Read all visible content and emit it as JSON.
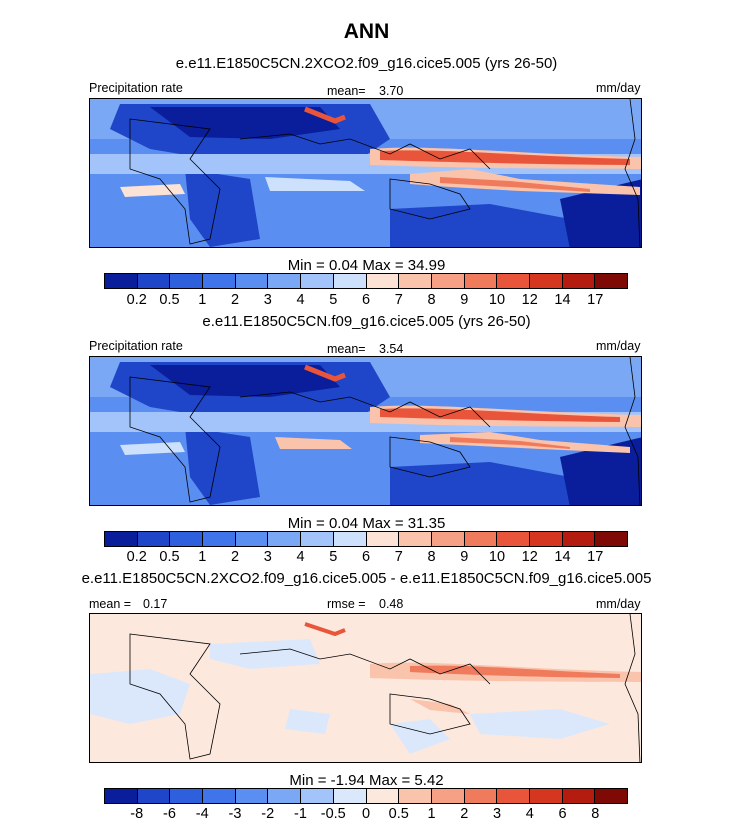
{
  "title": "ANN",
  "palettes": {
    "precip": [
      "#0a1d9a",
      "#1f45c8",
      "#2e5fdc",
      "#3f74ea",
      "#5a8ef0",
      "#7aa8f5",
      "#a3c4fa",
      "#cde0fc",
      "#fde3d6",
      "#fac3ab",
      "#f6a186",
      "#f07a5c",
      "#e8553a",
      "#d5361f",
      "#b41c10",
      "#7f0a05"
    ],
    "diff": [
      "#0a1d9a",
      "#1f45c8",
      "#2e5fdc",
      "#3f74ea",
      "#5a8ef0",
      "#7aa8f5",
      "#a3c4fa",
      "#dbe8fc",
      "#fde8dd",
      "#fac3ab",
      "#f6a186",
      "#f07a5c",
      "#e8553a",
      "#d5361f",
      "#b41c10",
      "#7f0a05"
    ]
  },
  "panels": [
    {
      "subtitle": "e.e11.E1850C5CN.2XCO2.f09_g16.cice5.005 (yrs 26-50)",
      "left_label": "Precipitation rate",
      "center_label": "mean=",
      "center_value": "3.70",
      "right_label": "mm/day",
      "minmax": "Min =   0.04 Max =  34.99",
      "palette": "precip",
      "ticks": [
        "0.2",
        "0.5",
        "1",
        "2",
        "3",
        "4",
        "5",
        "6",
        "7",
        "8",
        "9",
        "10",
        "12",
        "14",
        "17"
      ]
    },
    {
      "subtitle": "e.e11.E1850C5CN.f09_g16.cice5.005 (yrs 26-50)",
      "left_label": "Precipitation rate",
      "center_label": "mean=",
      "center_value": "3.54",
      "right_label": "mm/day",
      "minmax": "Min =   0.04 Max =  31.35",
      "palette": "precip",
      "ticks": [
        "0.2",
        "0.5",
        "1",
        "2",
        "3",
        "4",
        "5",
        "6",
        "7",
        "8",
        "9",
        "10",
        "12",
        "14",
        "17"
      ]
    },
    {
      "subtitle": "e.e11.E1850C5CN.2XCO2.f09_g16.cice5.005 - e.e11.E1850C5CN.f09_g16.cice5.005",
      "left_label": "mean =",
      "left_value": "0.17",
      "center_label": "rmse =",
      "center_value": "0.48",
      "right_label": "mm/day",
      "minmax": "Min =  -1.94 Max =   5.42",
      "palette": "diff",
      "ticks": [
        "-8",
        "-6",
        "-4",
        "-3",
        "-2",
        "-1",
        "-0.5",
        "0",
        "0.5",
        "1",
        "2",
        "3",
        "4",
        "6",
        "8"
      ]
    }
  ],
  "chart_data": [
    {
      "type": "heatmap",
      "title": "Precipitation rate",
      "units": "mm/day",
      "mean": 3.7,
      "min": 0.04,
      "max": 34.99,
      "levels": [
        0.2,
        0.5,
        1,
        2,
        3,
        4,
        5,
        6,
        7,
        8,
        9,
        10,
        12,
        14,
        17
      ]
    },
    {
      "type": "heatmap",
      "title": "Precipitation rate",
      "units": "mm/day",
      "mean": 3.54,
      "min": 0.04,
      "max": 31.35,
      "levels": [
        0.2,
        0.5,
        1,
        2,
        3,
        4,
        5,
        6,
        7,
        8,
        9,
        10,
        12,
        14,
        17
      ]
    },
    {
      "type": "heatmap",
      "units": "mm/day",
      "mean": 0.17,
      "rmse": 0.48,
      "min": -1.94,
      "max": 5.42,
      "levels": [
        -8,
        -6,
        -4,
        -3,
        -2,
        -1,
        -0.5,
        0,
        0.5,
        1,
        2,
        3,
        4,
        6,
        8
      ]
    }
  ]
}
